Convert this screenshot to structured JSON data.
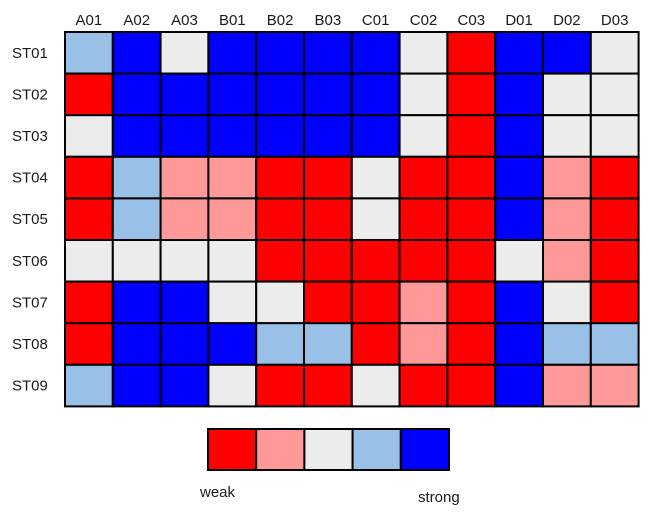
{
  "chart_data": {
    "type": "heatmap",
    "title": "",
    "columns": [
      "A01",
      "A02",
      "A03",
      "B01",
      "B02",
      "B03",
      "C01",
      "C02",
      "C03",
      "D01",
      "D02",
      "D03"
    ],
    "rows": [
      "ST01",
      "ST02",
      "ST03",
      "ST04",
      "ST05",
      "ST06",
      "ST07",
      "ST08",
      "ST09"
    ],
    "scale": {
      "levels": [
        1,
        2,
        3,
        4,
        5
      ],
      "colors": [
        "#ff0000",
        "#ff9999",
        "#ececec",
        "#99c0e6",
        "#0000ff"
      ],
      "low_label": "weak",
      "high_label": "strong"
    },
    "values": [
      [
        4,
        5,
        3,
        5,
        5,
        5,
        5,
        3,
        1,
        5,
        5,
        3
      ],
      [
        1,
        5,
        5,
        5,
        5,
        5,
        5,
        3,
        1,
        5,
        3,
        3
      ],
      [
        3,
        5,
        5,
        5,
        5,
        5,
        5,
        3,
        1,
        5,
        3,
        3
      ],
      [
        1,
        4,
        2,
        2,
        1,
        1,
        3,
        1,
        1,
        5,
        2,
        1
      ],
      [
        1,
        4,
        2,
        2,
        1,
        1,
        3,
        1,
        1,
        5,
        2,
        1
      ],
      [
        3,
        3,
        3,
        3,
        1,
        1,
        1,
        1,
        1,
        3,
        2,
        1
      ],
      [
        1,
        5,
        5,
        3,
        3,
        1,
        1,
        2,
        1,
        5,
        3,
        1
      ],
      [
        1,
        5,
        5,
        5,
        4,
        4,
        1,
        2,
        1,
        5,
        4,
        4
      ],
      [
        4,
        5,
        5,
        3,
        1,
        1,
        3,
        1,
        1,
        5,
        2,
        2
      ]
    ]
  }
}
